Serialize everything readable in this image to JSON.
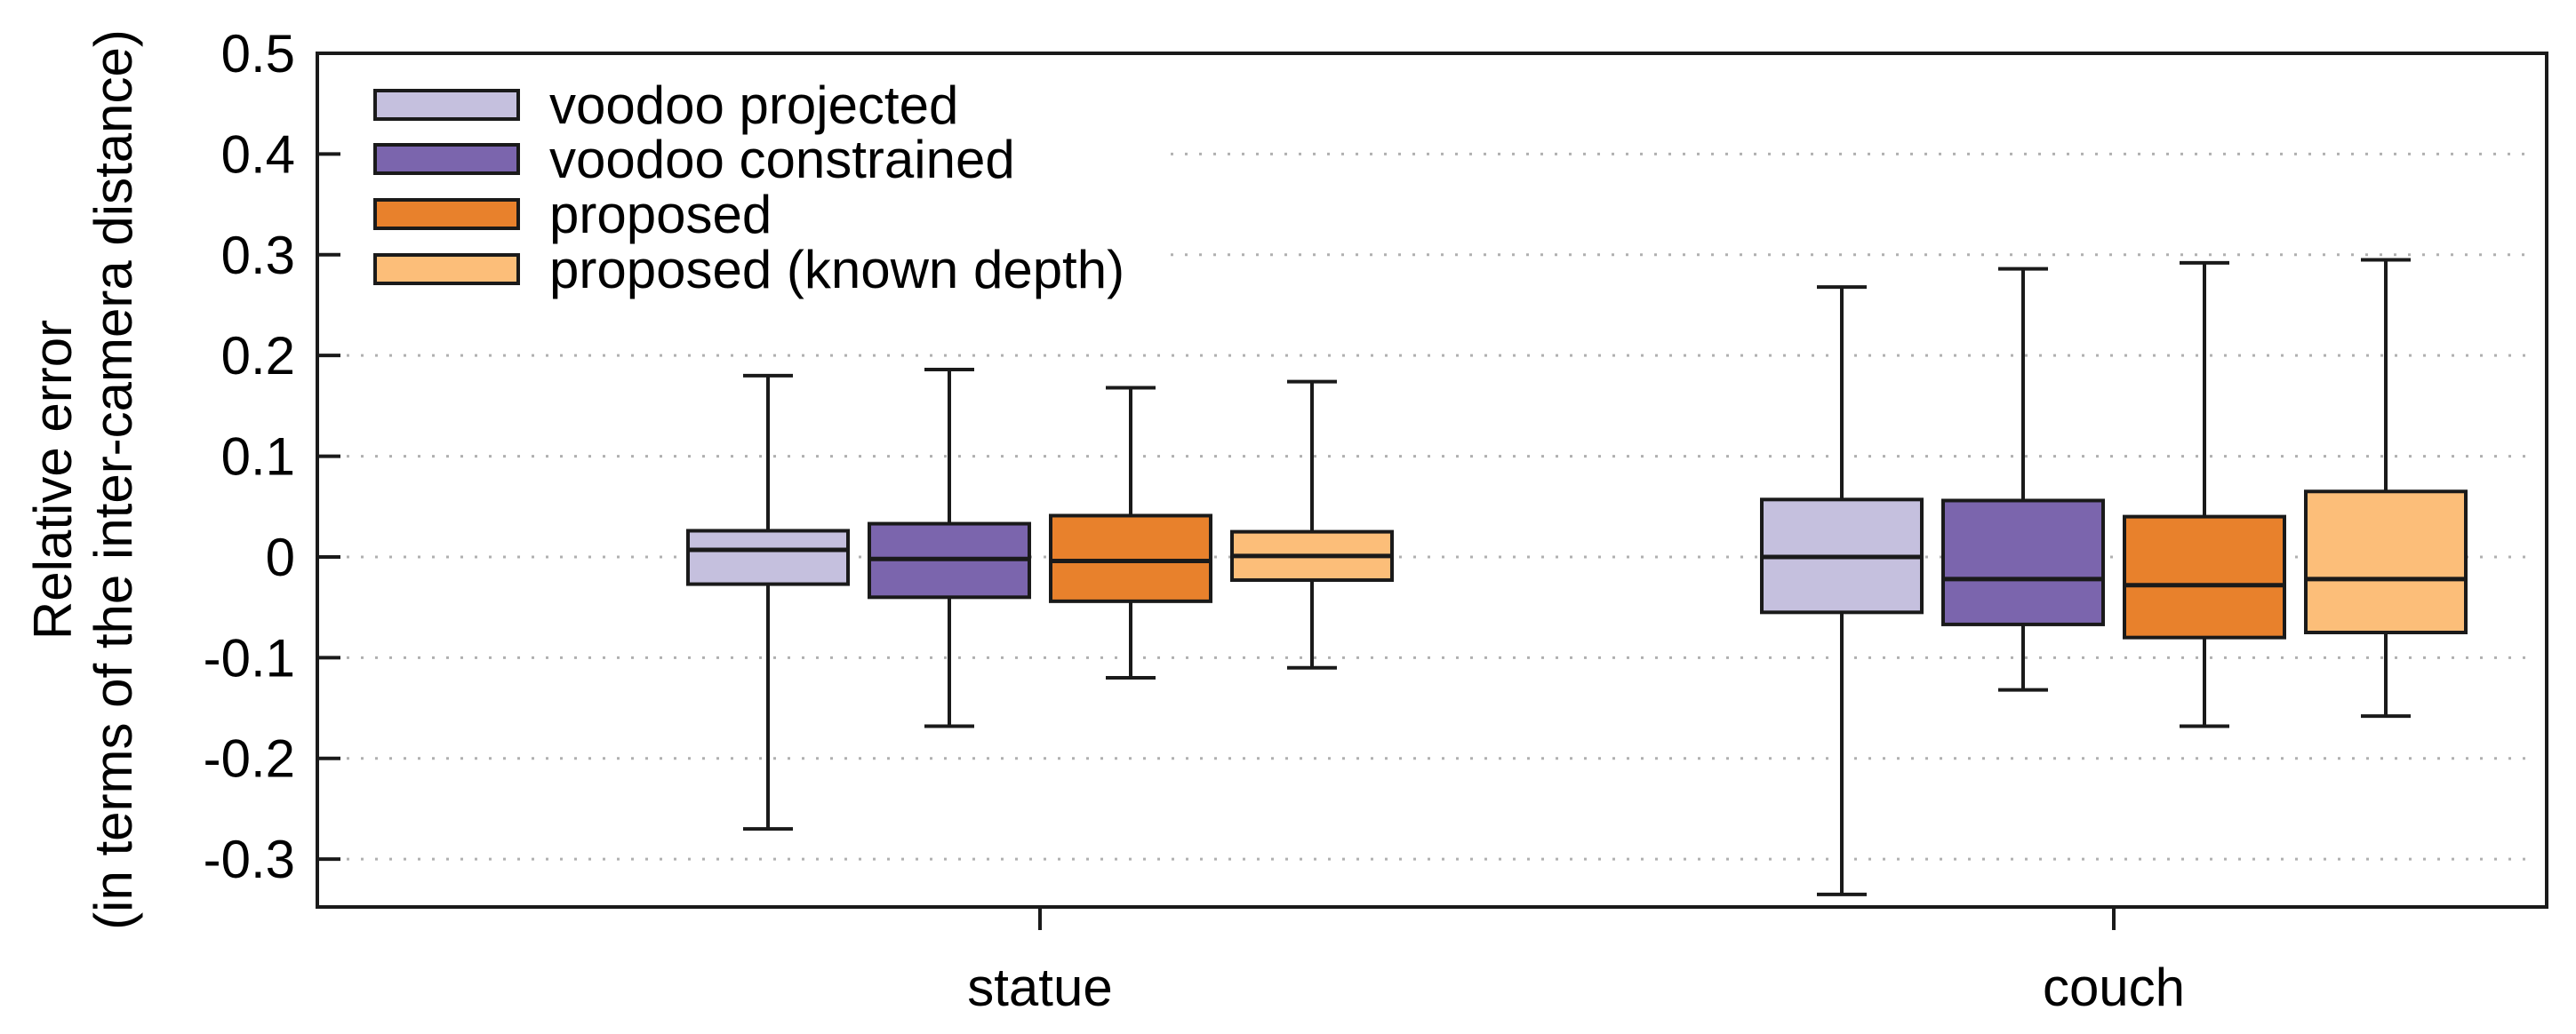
{
  "chart_data": {
    "type": "boxplot",
    "title": "",
    "ylabel_line1": "Relative error",
    "ylabel_line2": "(in terms of the inter-camera distance)",
    "ylim": [
      -0.3475,
      0.5
    ],
    "grid": "horizontal dotted lines at each y tick",
    "legend_position": "top-left inside plot, opaque over gridlines",
    "yticks": [
      {
        "label": "0.5",
        "value": 0.5
      },
      {
        "label": "0.4",
        "value": 0.4
      },
      {
        "label": "0.3",
        "value": 0.3
      },
      {
        "label": "0.2",
        "value": 0.2
      },
      {
        "label": "0.1",
        "value": 0.1
      },
      {
        "label": "0",
        "value": 0
      },
      {
        "label": "-0.1",
        "value": -0.1
      },
      {
        "label": "-0.2",
        "value": -0.2
      },
      {
        "label": "-0.3",
        "value": -0.3
      }
    ],
    "categories": [
      "statue",
      "couch"
    ],
    "series": [
      {
        "name": "voodoo projected",
        "color": "#c5c0de",
        "boxes": [
          {
            "group": "statue",
            "whisker_low": -0.27,
            "q1": -0.027,
            "median": 0.007,
            "q3": 0.026,
            "whisker_high": 0.18
          },
          {
            "group": "couch",
            "whisker_low": -0.335,
            "q1": -0.055,
            "median": 0.0,
            "q3": 0.057,
            "whisker_high": 0.268
          }
        ]
      },
      {
        "name": "voodoo constrained",
        "color": "#7b65ad",
        "boxes": [
          {
            "group": "statue",
            "whisker_low": -0.168,
            "q1": -0.04,
            "median": -0.002,
            "q3": 0.033,
            "whisker_high": 0.186
          },
          {
            "group": "couch",
            "whisker_low": -0.132,
            "q1": -0.067,
            "median": -0.022,
            "q3": 0.056,
            "whisker_high": 0.286
          }
        ]
      },
      {
        "name": "proposed",
        "color": "#e8812c",
        "boxes": [
          {
            "group": "statue",
            "whisker_low": -0.12,
            "q1": -0.044,
            "median": -0.004,
            "q3": 0.041,
            "whisker_high": 0.168
          },
          {
            "group": "couch",
            "whisker_low": -0.168,
            "q1": -0.08,
            "median": -0.028,
            "q3": 0.04,
            "whisker_high": 0.292
          }
        ]
      },
      {
        "name": "proposed (known depth)",
        "color": "#fcbe79",
        "boxes": [
          {
            "group": "statue",
            "whisker_low": -0.11,
            "q1": -0.023,
            "median": 0.001,
            "q3": 0.025,
            "whisker_high": 0.174
          },
          {
            "group": "couch",
            "whisker_low": -0.158,
            "q1": -0.075,
            "median": -0.022,
            "q3": 0.065,
            "whisker_high": 0.295
          }
        ]
      }
    ],
    "colors": {
      "axis": "#1a1a1a",
      "grid": "#b0b0b0",
      "text": "#000000",
      "background": "#ffffff"
    }
  }
}
